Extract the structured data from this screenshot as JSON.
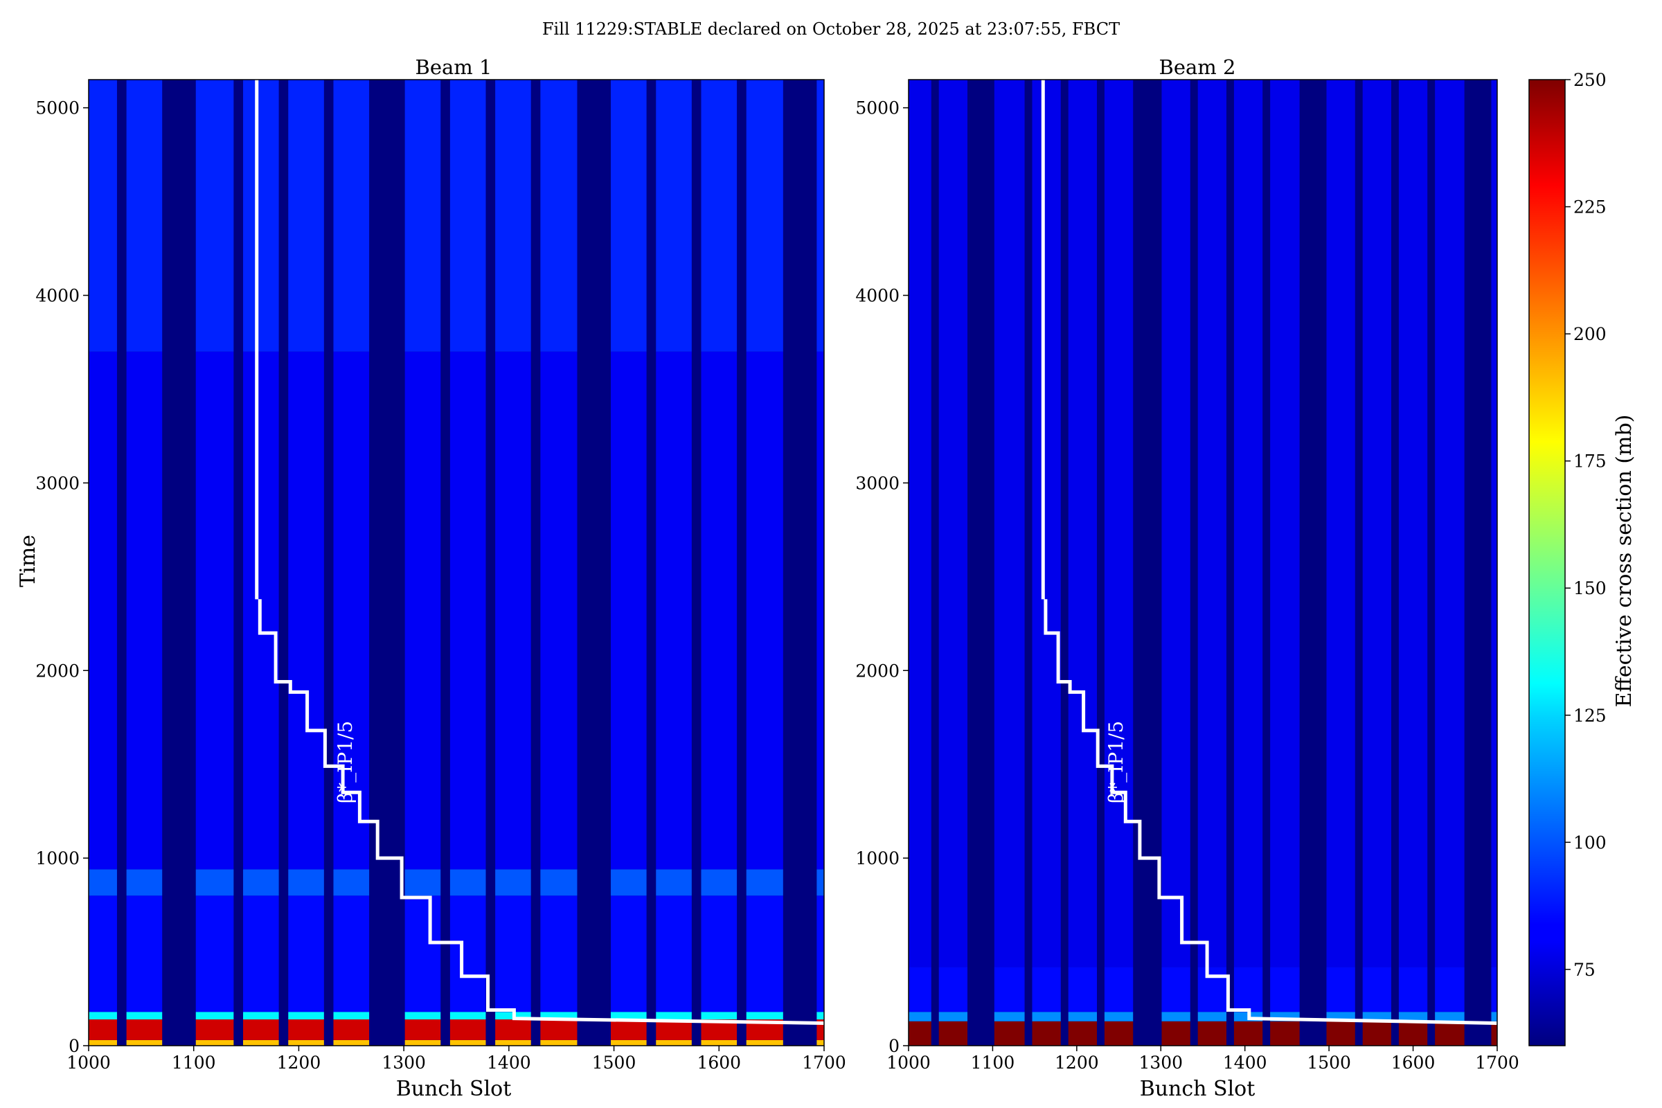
{
  "figure_title": "Fill 11229:STABLE declared on October 28, 2025 at 23:07:55, FBCT",
  "colorbar": {
    "label": "Effective cross section (mb)",
    "ticks": [
      75,
      100,
      125,
      150,
      175,
      200,
      225,
      250
    ],
    "range": [
      60,
      250
    ],
    "colormap": "jet"
  },
  "chart_data": [
    {
      "type": "heatmap",
      "title": "Beam 1",
      "xlabel": "Bunch Slot",
      "ylabel": "Time",
      "xlim": [
        1000,
        1700
      ],
      "ylim": [
        0,
        5150
      ],
      "xticks": [
        1000,
        1100,
        1200,
        1300,
        1400,
        1500,
        1600,
        1700
      ],
      "yticks": [
        0,
        1000,
        2000,
        3000,
        4000,
        5000
      ],
      "filled_slot_ranges": [
        [
          1000,
          1027
        ],
        [
          1036,
          1070
        ],
        [
          1102,
          1138
        ],
        [
          1147,
          1181
        ],
        [
          1190,
          1224
        ],
        [
          1233,
          1267
        ],
        [
          1301,
          1335
        ],
        [
          1344,
          1378
        ],
        [
          1387,
          1421
        ],
        [
          1430,
          1465
        ],
        [
          1497,
          1531
        ],
        [
          1540,
          1574
        ],
        [
          1583,
          1617
        ],
        [
          1626,
          1661
        ],
        [
          1693,
          1700
        ]
      ],
      "empty_cross_section_mb": 60,
      "cross_section_bands_mb": [
        {
          "time": [
            0,
            30
          ],
          "value": 190
        },
        {
          "time": [
            30,
            140
          ],
          "value": 235
        },
        {
          "time": [
            140,
            180
          ],
          "value": 130
        },
        {
          "time": [
            180,
            800
          ],
          "value": 85
        },
        {
          "time": [
            800,
            940
          ],
          "value": 100
        },
        {
          "time": [
            940,
            3700
          ],
          "value": 82
        },
        {
          "time": [
            3700,
            5150
          ],
          "value": 90
        }
      ],
      "overlay_label": "β*_IP1/5",
      "beta_star_ip15": {
        "x": [
          1700,
          1405,
          1405,
          1380,
          1380,
          1355,
          1355,
          1325,
          1325,
          1298,
          1298,
          1275,
          1275,
          1258,
          1258,
          1242,
          1242,
          1225,
          1225,
          1208,
          1208,
          1192,
          1192,
          1178,
          1178,
          1163,
          1163
        ],
        "y": [
          120,
          145,
          190,
          190,
          370,
          370,
          550,
          550,
          790,
          790,
          1000,
          1000,
          1195,
          1195,
          1350,
          1350,
          1490,
          1490,
          1680,
          1680,
          1885,
          1885,
          1940,
          1940,
          2200,
          2200,
          2380
        ]
      },
      "beta_star_vertical": {
        "x": 1160,
        "y": [
          2380,
          5150
        ]
      }
    },
    {
      "type": "heatmap",
      "title": "Beam 2",
      "xlabel": "Bunch Slot",
      "ylabel": "",
      "xlim": [
        1000,
        1700
      ],
      "ylim": [
        0,
        5150
      ],
      "xticks": [
        1000,
        1100,
        1200,
        1300,
        1400,
        1500,
        1600,
        1700
      ],
      "yticks": [
        0,
        1000,
        2000,
        3000,
        4000,
        5000
      ],
      "filled_slot_ranges": [
        [
          1000,
          1027
        ],
        [
          1036,
          1070
        ],
        [
          1102,
          1138
        ],
        [
          1147,
          1181
        ],
        [
          1190,
          1224
        ],
        [
          1233,
          1267
        ],
        [
          1301,
          1335
        ],
        [
          1344,
          1378
        ],
        [
          1387,
          1421
        ],
        [
          1430,
          1465
        ],
        [
          1497,
          1531
        ],
        [
          1540,
          1574
        ],
        [
          1583,
          1617
        ],
        [
          1626,
          1661
        ],
        [
          1693,
          1700
        ]
      ],
      "empty_cross_section_mb": 60,
      "cross_section_bands_mb": [
        {
          "time": [
            0,
            130
          ],
          "value": 250
        },
        {
          "time": [
            130,
            180
          ],
          "value": 110
        },
        {
          "time": [
            180,
            420
          ],
          "value": 85
        },
        {
          "time": [
            420,
            5150
          ],
          "value": 80
        }
      ],
      "overlay_label": "β*_IP1/5",
      "beta_star_ip15": {
        "x": [
          1700,
          1405,
          1405,
          1380,
          1380,
          1355,
          1355,
          1325,
          1325,
          1298,
          1298,
          1275,
          1275,
          1258,
          1258,
          1242,
          1242,
          1225,
          1225,
          1208,
          1208,
          1192,
          1192,
          1178,
          1178,
          1163,
          1163
        ],
        "y": [
          120,
          145,
          190,
          190,
          370,
          370,
          550,
          550,
          790,
          790,
          1000,
          1000,
          1195,
          1195,
          1350,
          1350,
          1490,
          1490,
          1680,
          1680,
          1885,
          1885,
          1940,
          1940,
          2200,
          2200,
          2380
        ]
      },
      "beta_star_vertical": {
        "x": 1160,
        "y": [
          2380,
          5150
        ]
      }
    }
  ]
}
